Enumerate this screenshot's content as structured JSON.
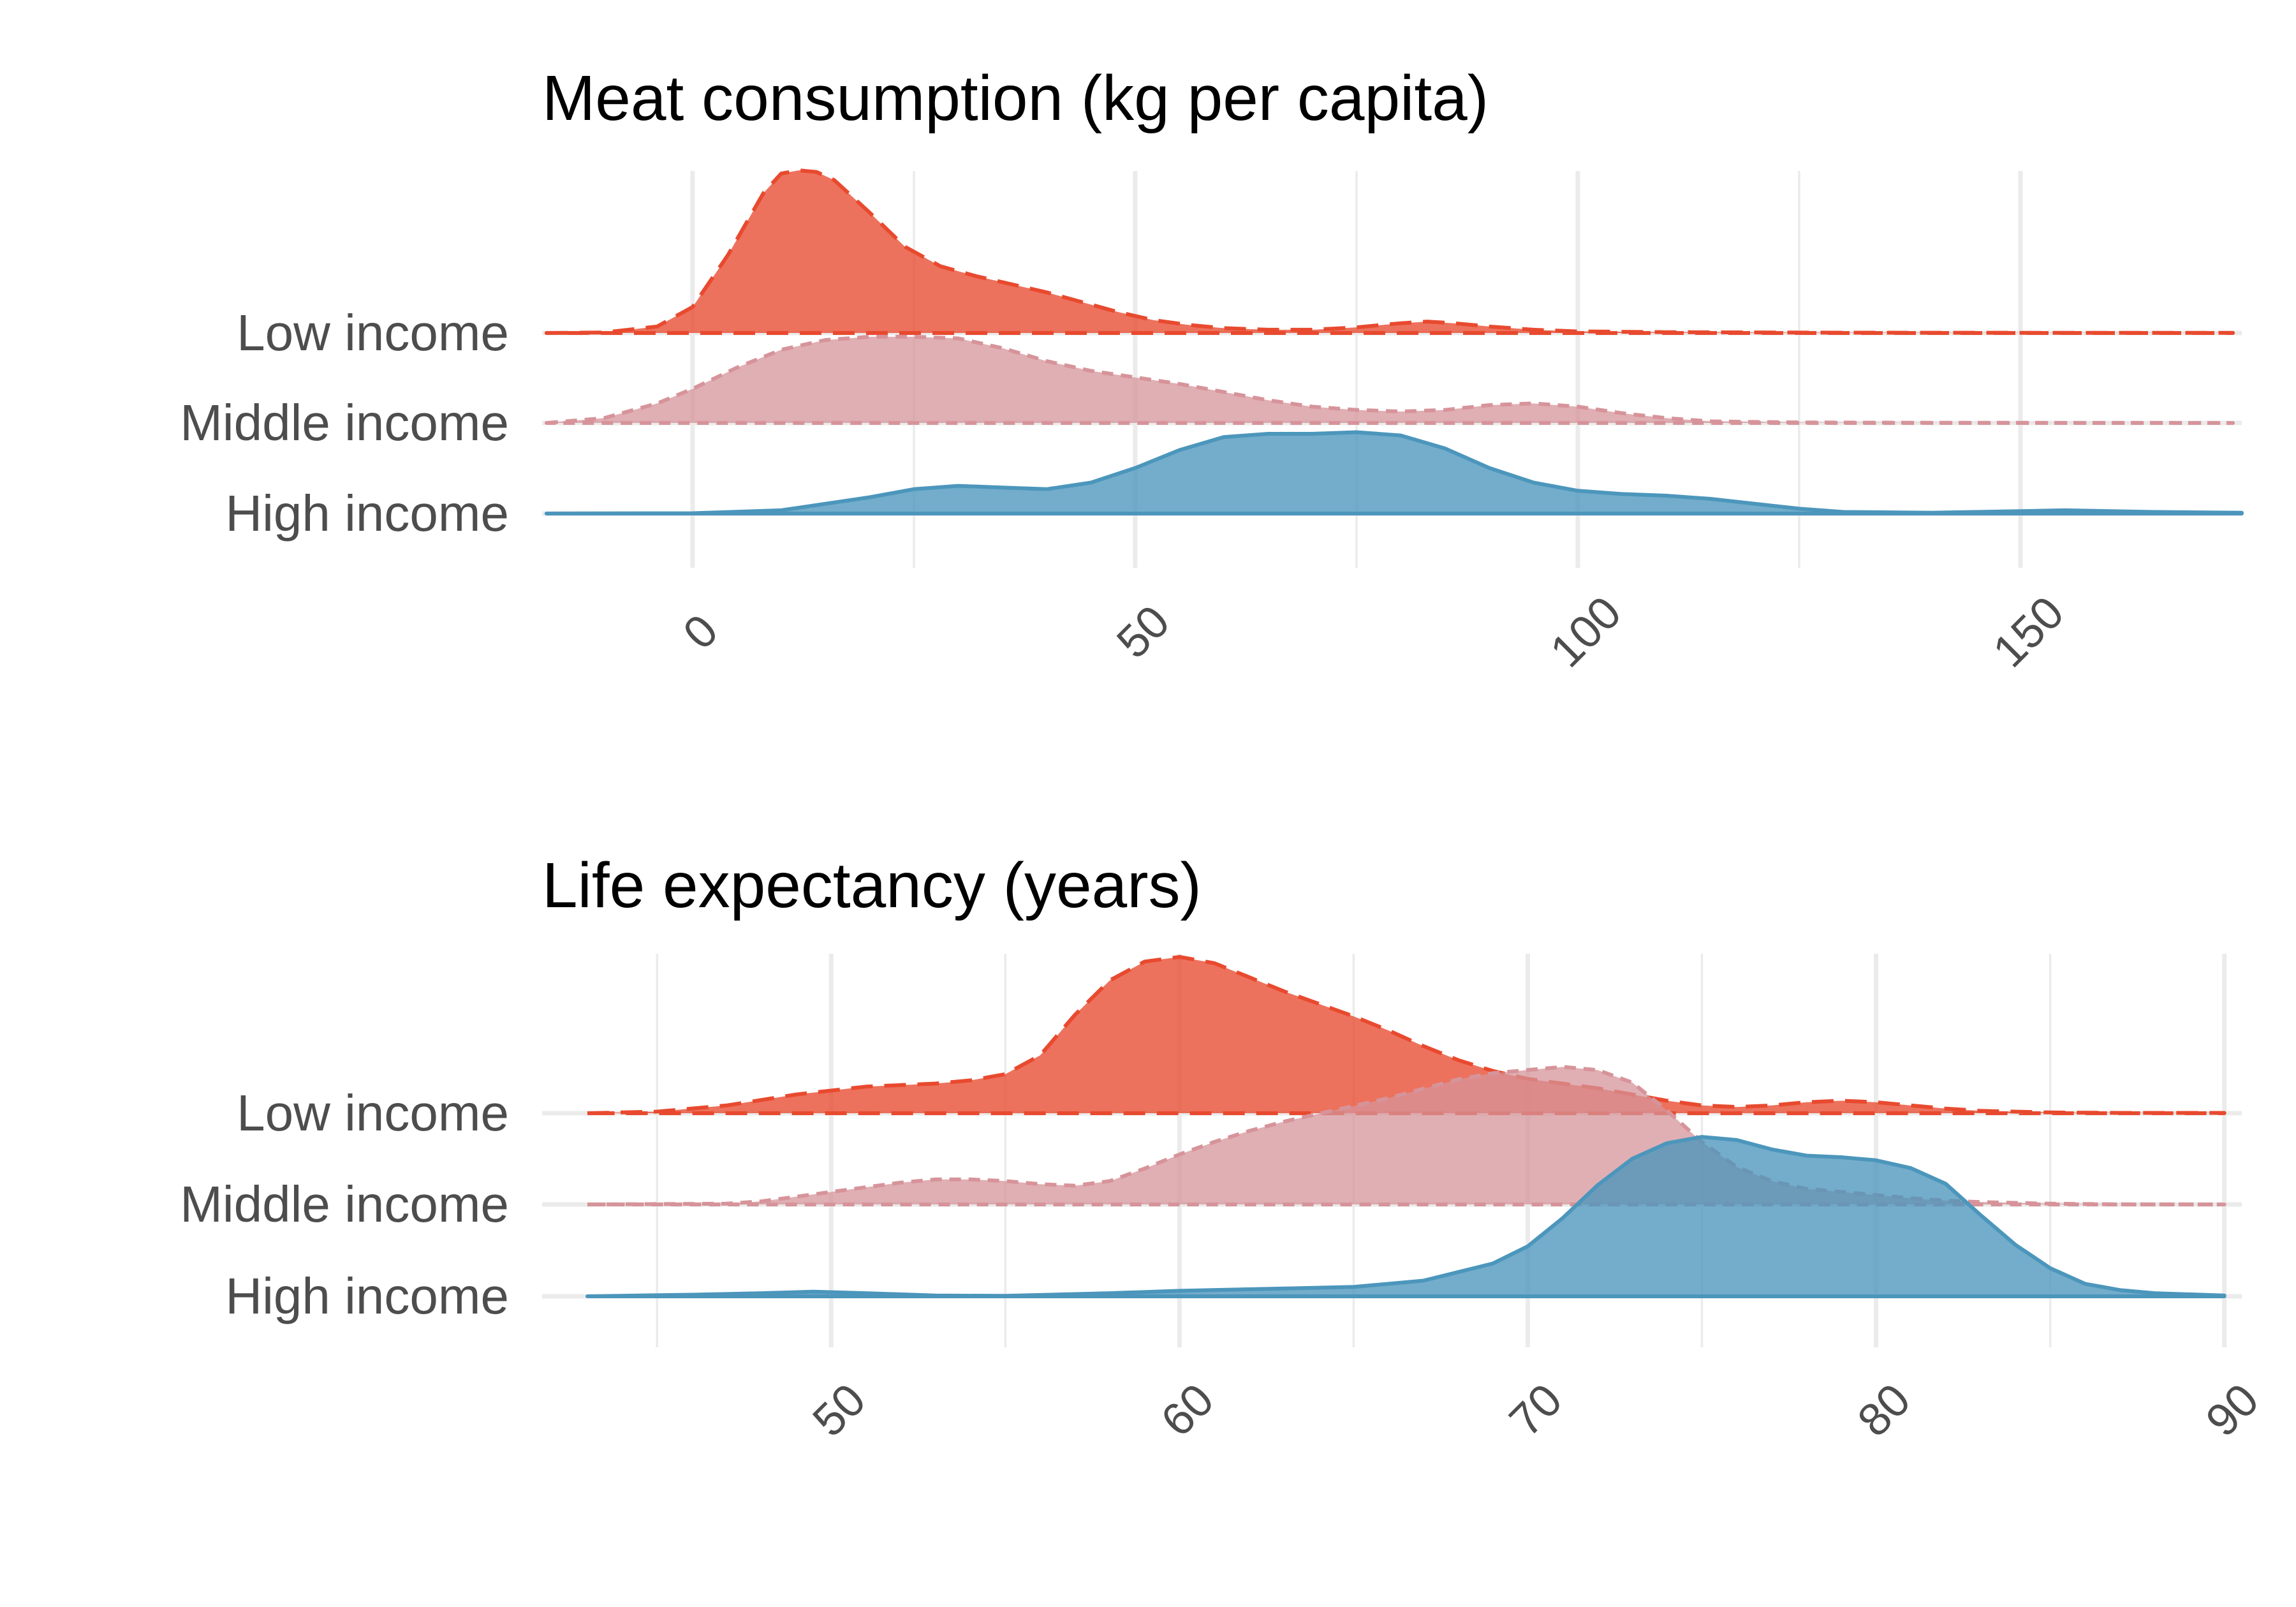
{
  "colors": {
    "low_income": "#E84A2F",
    "middle_income": "#D6949A",
    "high_income": "#4C96BC",
    "grid": "#EBEBEB",
    "label_text": "#4D4D4D"
  },
  "chart_data": [
    {
      "type": "area",
      "subtype": "ridgeline-density",
      "title": "Meat consumption (kg per capita)",
      "xlabel": "",
      "ylabel": "",
      "xlim": [
        -17,
        175
      ],
      "x_ticks": [
        0,
        50,
        100,
        150
      ],
      "x_tick_labels": [
        "0",
        "50",
        "100",
        "150"
      ],
      "x_minor_ticks": [
        25,
        75,
        125
      ],
      "tick_label_rotation_deg": 45,
      "grid": true,
      "legend": "none",
      "categories": [
        "Low income",
        "Middle income",
        "High income"
      ],
      "series": [
        {
          "name": "Low income",
          "line_style": "long-dash",
          "points": [
            [
              -16.5,
              0
            ],
            [
              -10,
              0.3
            ],
            [
              -4,
              4
            ],
            [
              0,
              16
            ],
            [
              4,
              48
            ],
            [
              8,
              86
            ],
            [
              10,
              98
            ],
            [
              12,
              100
            ],
            [
              14,
              99
            ],
            [
              16,
              94
            ],
            [
              20,
              74
            ],
            [
              24,
              53
            ],
            [
              28,
              41
            ],
            [
              32,
              35
            ],
            [
              36,
              30
            ],
            [
              40,
              25
            ],
            [
              44,
              19
            ],
            [
              48,
              13
            ],
            [
              52,
              8
            ],
            [
              56,
              5
            ],
            [
              60,
              3
            ],
            [
              65,
              2
            ],
            [
              70,
              2
            ],
            [
              75,
              3.5
            ],
            [
              80,
              6
            ],
            [
              83,
              7
            ],
            [
              86,
              6
            ],
            [
              90,
              4
            ],
            [
              95,
              2
            ],
            [
              100,
              1
            ],
            [
              110,
              0.5
            ],
            [
              130,
              0.2
            ],
            [
              150,
              0.1
            ],
            [
              174,
              0.1
            ]
          ]
        },
        {
          "name": "Middle income",
          "line_style": "dashed",
          "points": [
            [
              -16.5,
              0
            ],
            [
              -10,
              3
            ],
            [
              -4,
              12
            ],
            [
              0,
              21
            ],
            [
              5,
              34
            ],
            [
              10,
              45
            ],
            [
              15,
              51
            ],
            [
              20,
              53
            ],
            [
              25,
              53
            ],
            [
              30,
              52
            ],
            [
              35,
              46
            ],
            [
              40,
              38
            ],
            [
              45,
              32
            ],
            [
              50,
              28
            ],
            [
              55,
              24
            ],
            [
              60,
              19
            ],
            [
              65,
              14
            ],
            [
              70,
              10
            ],
            [
              75,
              8
            ],
            [
              80,
              7
            ],
            [
              85,
              8
            ],
            [
              90,
              11
            ],
            [
              95,
              12
            ],
            [
              100,
              10
            ],
            [
              105,
              6
            ],
            [
              110,
              3
            ],
            [
              115,
              1
            ],
            [
              125,
              0.3
            ],
            [
              140,
              0.1
            ],
            [
              174,
              0
            ]
          ]
        },
        {
          "name": "High income",
          "line_style": "solid",
          "points": [
            [
              -16.5,
              0
            ],
            [
              0,
              0.2
            ],
            [
              10,
              2
            ],
            [
              20,
              10
            ],
            [
              25,
              15
            ],
            [
              30,
              17
            ],
            [
              35,
              16
            ],
            [
              40,
              15
            ],
            [
              45,
              19
            ],
            [
              50,
              28
            ],
            [
              55,
              39
            ],
            [
              60,
              47
            ],
            [
              65,
              49
            ],
            [
              70,
              49
            ],
            [
              75,
              50
            ],
            [
              80,
              48
            ],
            [
              85,
              40
            ],
            [
              90,
              28
            ],
            [
              95,
              19
            ],
            [
              100,
              14
            ],
            [
              105,
              12
            ],
            [
              110,
              11
            ],
            [
              115,
              9
            ],
            [
              120,
              6
            ],
            [
              125,
              3
            ],
            [
              130,
              1
            ],
            [
              140,
              0.5
            ],
            [
              150,
              1.5
            ],
            [
              155,
              2
            ],
            [
              165,
              1
            ],
            [
              175,
              0.5
            ]
          ]
        }
      ]
    },
    {
      "type": "area",
      "subtype": "ridgeline-density",
      "title": "Life expectancy (years)",
      "xlabel": "",
      "ylabel": "",
      "xlim": [
        41.7,
        90.5
      ],
      "x_ticks": [
        50,
        60,
        70,
        80,
        90
      ],
      "x_tick_labels": [
        "50",
        "60",
        "70",
        "80",
        "90"
      ],
      "x_minor_ticks": [
        45,
        55,
        65,
        75,
        85
      ],
      "tick_label_rotation_deg": 45,
      "grid": true,
      "legend": "none",
      "categories": [
        "Low income",
        "Middle income",
        "High income"
      ],
      "series": [
        {
          "name": "Low income",
          "line_style": "long-dash",
          "points": [
            [
              43,
              0
            ],
            [
              45,
              1
            ],
            [
              47,
              5
            ],
            [
              49,
              12
            ],
            [
              51,
              17
            ],
            [
              53,
              19
            ],
            [
              54,
              21
            ],
            [
              55,
              25
            ],
            [
              56,
              37
            ],
            [
              57,
              63
            ],
            [
              58,
              85
            ],
            [
              59,
              97
            ],
            [
              60,
              100
            ],
            [
              61,
              96
            ],
            [
              62,
              87
            ],
            [
              63,
              78
            ],
            [
              64,
              70
            ],
            [
              65,
              62
            ],
            [
              66,
              53
            ],
            [
              67,
              43
            ],
            [
              68,
              34
            ],
            [
              69,
              27
            ],
            [
              70,
              22
            ],
            [
              71,
              19
            ],
            [
              72,
              16
            ],
            [
              73,
              12
            ],
            [
              74,
              8
            ],
            [
              75,
              5
            ],
            [
              76,
              4
            ],
            [
              77,
              5
            ],
            [
              78,
              7
            ],
            [
              79,
              8
            ],
            [
              80,
              7
            ],
            [
              81,
              5
            ],
            [
              82,
              3
            ],
            [
              83,
              1.5
            ],
            [
              85,
              0.5
            ],
            [
              87,
              0.2
            ],
            [
              90,
              0.2
            ]
          ]
        },
        {
          "name": "Middle income",
          "line_style": "dashed",
          "points": [
            [
              43,
              0
            ],
            [
              47,
              0.5
            ],
            [
              48,
              2
            ],
            [
              49,
              5
            ],
            [
              50,
              8
            ],
            [
              51,
              11
            ],
            [
              52,
              14
            ],
            [
              53,
              16
            ],
            [
              54,
              16
            ],
            [
              55,
              15
            ],
            [
              56,
              13
            ],
            [
              57,
              12
            ],
            [
              58,
              15
            ],
            [
              59,
              23
            ],
            [
              60,
              32
            ],
            [
              61,
              40
            ],
            [
              62,
              47
            ],
            [
              63,
              53
            ],
            [
              64,
              58
            ],
            [
              65,
              63
            ],
            [
              66,
              68
            ],
            [
              67,
              74
            ],
            [
              68,
              80
            ],
            [
              69,
              84
            ],
            [
              70,
              86
            ],
            [
              71,
              88
            ],
            [
              72,
              86
            ],
            [
              73,
              78
            ],
            [
              74,
              60
            ],
            [
              75,
              40
            ],
            [
              76,
              24
            ],
            [
              77,
              15
            ],
            [
              78,
              10
            ],
            [
              79,
              8
            ],
            [
              80,
              6
            ],
            [
              81,
              4
            ],
            [
              82,
              2.5
            ],
            [
              83,
              1.5
            ],
            [
              85,
              0.5
            ],
            [
              87,
              0.1
            ],
            [
              90,
              0
            ]
          ]
        },
        {
          "name": "High income",
          "line_style": "solid",
          "points": [
            [
              43,
              0
            ],
            [
              46,
              1
            ],
            [
              48,
              2
            ],
            [
              49.5,
              3
            ],
            [
              51,
              2
            ],
            [
              53,
              0.5
            ],
            [
              55,
              0.3
            ],
            [
              58,
              2
            ],
            [
              60,
              3.5
            ],
            [
              63,
              5
            ],
            [
              65,
              6
            ],
            [
              67,
              10
            ],
            [
              69,
              21
            ],
            [
              70,
              32
            ],
            [
              71,
              50
            ],
            [
              72,
              71
            ],
            [
              73,
              88
            ],
            [
              74,
              98
            ],
            [
              75,
              102
            ],
            [
              76,
              100
            ],
            [
              77,
              94
            ],
            [
              78,
              90
            ],
            [
              79,
              89
            ],
            [
              80,
              87
            ],
            [
              81,
              82
            ],
            [
              82,
              72
            ],
            [
              83,
              52
            ],
            [
              84,
              33
            ],
            [
              85,
              18
            ],
            [
              86,
              8
            ],
            [
              87,
              4
            ],
            [
              88,
              2
            ],
            [
              90,
              0.5
            ]
          ]
        }
      ]
    }
  ]
}
